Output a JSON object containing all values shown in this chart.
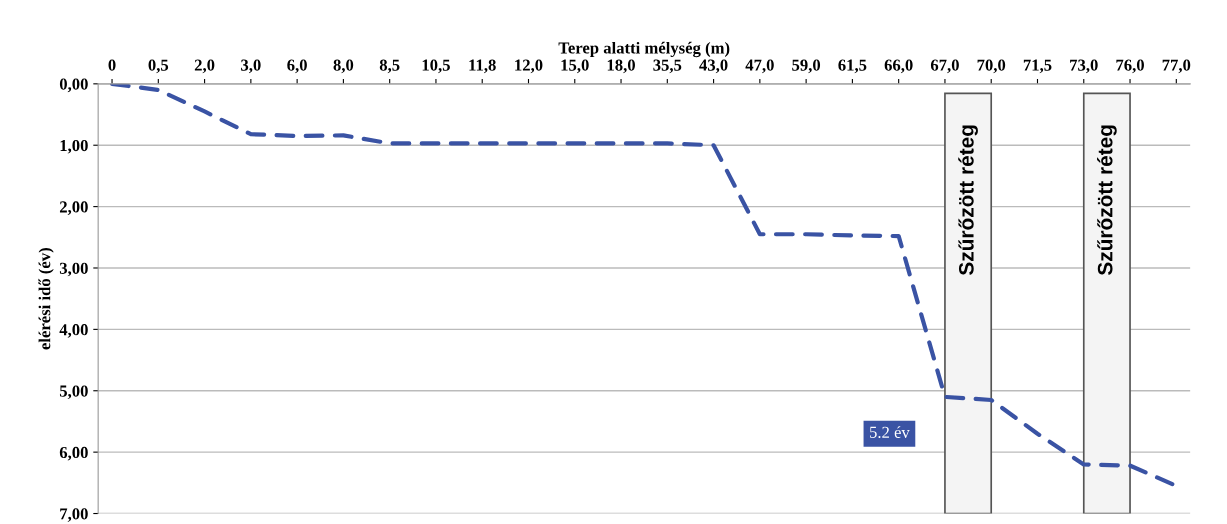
{
  "chart_data": {
    "type": "line",
    "xlabel": "Terep alatti mélység (m)",
    "ylabel": "elérési idő (év)",
    "categories": [
      "0",
      "0,5",
      "2,0",
      "3,0",
      "6,0",
      "8,0",
      "8,5",
      "10,5",
      "11,8",
      "12,0",
      "15,0",
      "18,0",
      "35,5",
      "43,0",
      "47,0",
      "59,0",
      "61,5",
      "66,0",
      "67,0",
      "70,0",
      "71,5",
      "73,0",
      "76,0",
      "77,0"
    ],
    "series": [
      {
        "color": "#3a53a4",
        "values": [
          0,
          0.1,
          0.45,
          0.82,
          0.85,
          0.84,
          0.97,
          0.97,
          0.97,
          0.97,
          0.97,
          0.97,
          0.97,
          1.0,
          2.45,
          2.45,
          2.47,
          2.48,
          5.1,
          5.15,
          5.7,
          6.2,
          6.22,
          6.55
        ]
      }
    ],
    "ylim": [
      7,
      0
    ],
    "yticks": [
      {
        "value": 0,
        "label": "0,00"
      },
      {
        "value": 1,
        "label": "1,00"
      },
      {
        "value": 2,
        "label": "2,00"
      },
      {
        "value": 3,
        "label": "3,00"
      },
      {
        "value": 4,
        "label": "4,00"
      },
      {
        "value": 5,
        "label": "5,00"
      },
      {
        "value": 6,
        "label": "6,00"
      },
      {
        "value": 7,
        "label": "7,00"
      }
    ],
    "bands": [
      {
        "axis": "x",
        "from": "67,0",
        "to": "70,0",
        "label": "Szűrőzött réteg"
      },
      {
        "axis": "x",
        "from": "73,0",
        "to": "76,0",
        "label": "Szűrőzött réteg"
      }
    ],
    "annotations": [
      {
        "text": "5.2 év",
        "x": "67,0",
        "y": 5.1
      }
    ],
    "grid": "y",
    "line_style": "dashed",
    "marker": "none",
    "legend": false
  }
}
